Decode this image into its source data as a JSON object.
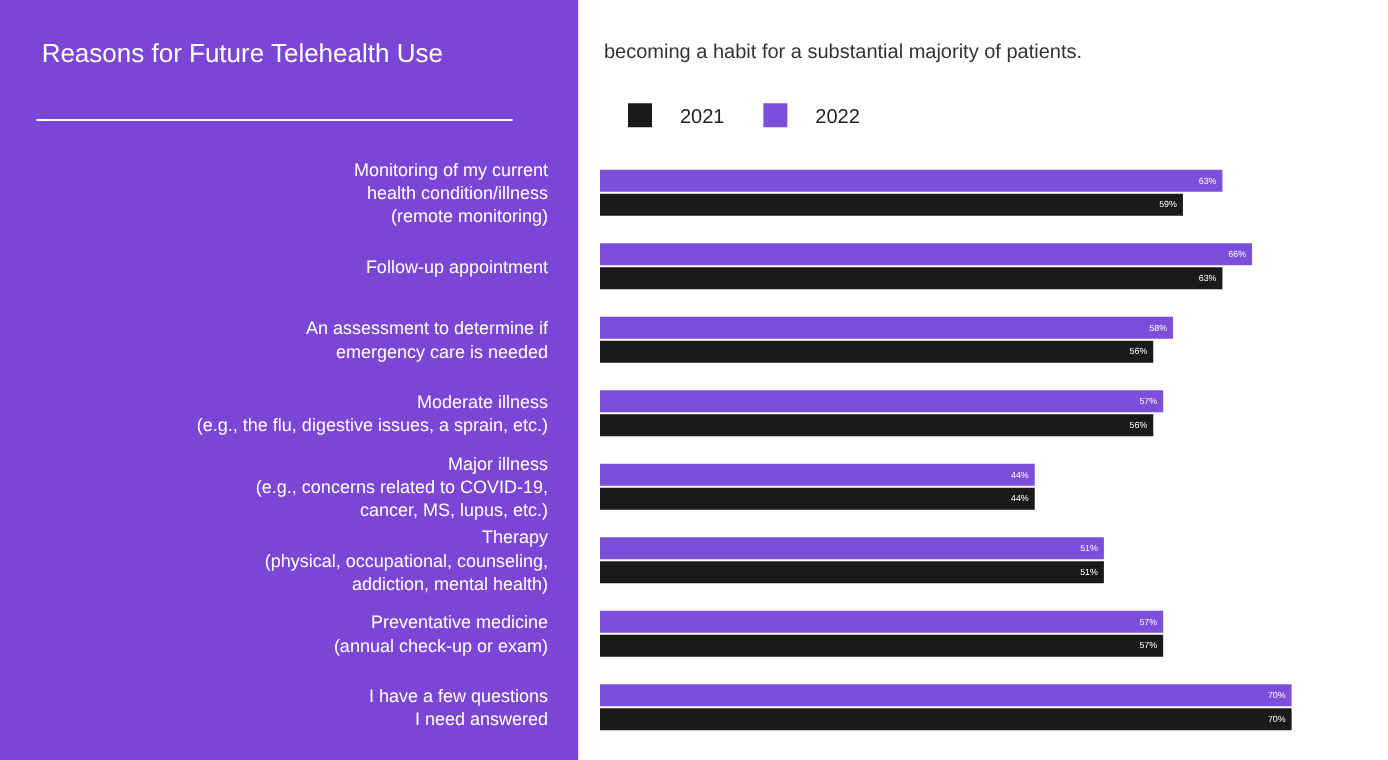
{
  "chart_data": {
    "type": "bar",
    "orientation": "horizontal",
    "title": "Reasons for Future Telehealth Use",
    "annotations": [
      "becoming a habit for a substantial majority of patients."
    ],
    "categories": [
      "Monitoring of my current\nhealth condition/illness\n(remote monitoring)",
      "Follow-up appointment",
      "An assessment to determine if\nemergency care is needed",
      "Moderate illness\n(e.g., the flu, digestive issues, a sprain, etc.)",
      "Major illness\n(e.g., concerns related to COVID-19,\ncancer, MS, lupus, etc.)",
      "Therapy\n(physical, occupational, counseling,\naddiction, mental health)",
      "Preventative medicine\n(annual check-up or exam)",
      "I have a few questions\nI need answered"
    ],
    "series": [
      {
        "name": "2022",
        "color": "#7b4fd9",
        "values": [
          63,
          66,
          58,
          57,
          44,
          51,
          57,
          70
        ],
        "value_labels": [
          "63%",
          "66%",
          "58%",
          "57%",
          "44%",
          "51%",
          "57%",
          "70%"
        ]
      },
      {
        "name": "2021",
        "color": "#1a1a1a",
        "values": [
          59,
          63,
          56,
          56,
          44,
          51,
          57,
          70
        ],
        "value_labels": [
          "59%",
          "63%",
          "56%",
          "56%",
          "44%",
          "51%",
          "57%",
          "70%"
        ]
      }
    ],
    "legend": "top left"
  }
}
